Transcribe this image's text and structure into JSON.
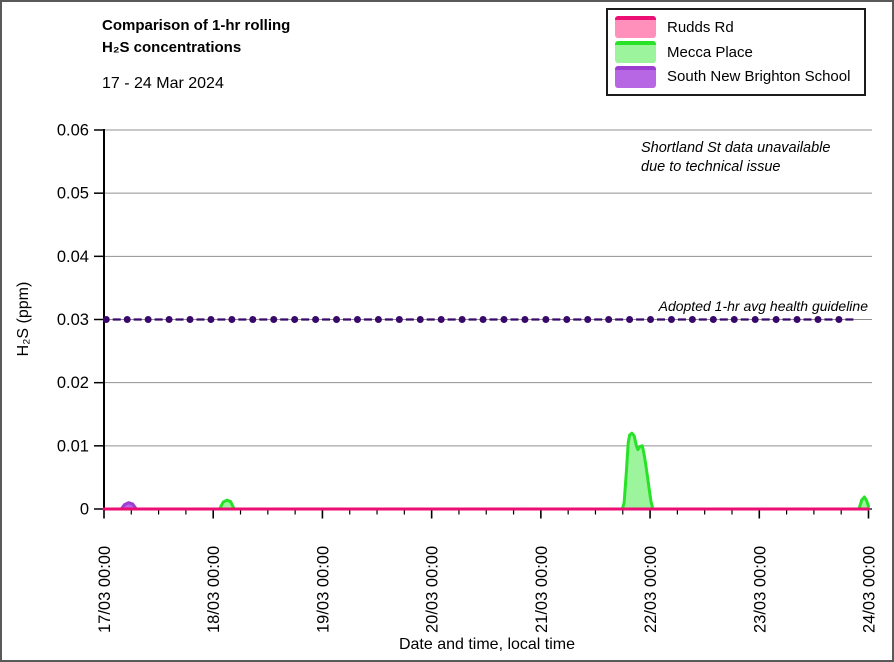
{
  "window": {
    "background": "#ffffff",
    "border_color": "#595959"
  },
  "header": {
    "title_line1": "Comparison of 1-hr rolling",
    "title_line2": "H₂S concentrations",
    "subtitle": "17  - 24 Mar 2024"
  },
  "legend": {
    "items": [
      {
        "label": "Rudds Rd",
        "line": "#ec0e72",
        "fill": "#ff8fbb"
      },
      {
        "label": "Mecca Place",
        "line": "#28e228",
        "fill": "#9cf49c"
      },
      {
        "label": "South New Brighton School",
        "line": "#9c3fd1",
        "fill": "#b767e4"
      }
    ]
  },
  "annotations": {
    "unavailable_note_line1": "Shortland St data unavailable",
    "unavailable_note_line2": "due to technical issue",
    "guideline_label": "Adopted 1-hr avg health guideline"
  },
  "chart_data": {
    "type": "area",
    "title": "Comparison of 1-hr rolling H₂S concentrations",
    "subtitle": "17 - 24 Mar 2024",
    "xlabel": "Date and time, local time",
    "ylabel": "H₂S (ppm)",
    "x_axis_start": "17/03 00:00",
    "x_axis_end": "24/03 00:00",
    "xlim_hours": [
      0,
      168
    ],
    "ylim": [
      0,
      0.06
    ],
    "yticks": [
      0,
      0.01,
      0.02,
      0.03,
      0.04,
      0.05,
      0.06
    ],
    "ytick_labels": [
      "0",
      "0.01",
      "0.02",
      "0.03",
      "0.04",
      "0.05",
      "0.06"
    ],
    "xtick_labels": [
      "17/03 00:00",
      "18/03 00:00",
      "19/03 00:00",
      "20/03 00:00",
      "21/03 00:00",
      "22/03 00:00",
      "23/03 00:00",
      "24/03 00:00"
    ],
    "x_major_interval_hours": 24,
    "x_minor_interval_hours": 6,
    "grid": true,
    "grid_color": "#909090",
    "axis_color": "#000000",
    "legend_position": "top-right",
    "guideline": {
      "value": 0.03,
      "label": "Adopted 1-hr avg health guideline",
      "color": "#38096b",
      "style": "dashed-with-dot-markers",
      "start_hours": 0.5,
      "end_hours": 166,
      "marker_interval_hours": 4.6
    },
    "series": [
      {
        "name": "Rudds Rd",
        "line_color": "#ec0e72",
        "fill_color": "#ff8fbb",
        "points": [
          [
            0,
            0
          ],
          [
            168,
            0
          ]
        ]
      },
      {
        "name": "Mecca Place",
        "line_color": "#28e228",
        "fill_color": "#9cf49c",
        "points": [
          [
            0,
            0
          ],
          [
            25.4,
            0
          ],
          [
            26.2,
            0.0011
          ],
          [
            27.0,
            0.0014
          ],
          [
            27.8,
            0.0012
          ],
          [
            28.6,
            0
          ],
          [
            113.9,
            0
          ],
          [
            114.3,
            0.001
          ],
          [
            114.8,
            0.006
          ],
          [
            115.2,
            0.0105
          ],
          [
            115.5,
            0.0117
          ],
          [
            116.0,
            0.012
          ],
          [
            116.5,
            0.0116
          ],
          [
            117.0,
            0.01
          ],
          [
            117.3,
            0.0094
          ],
          [
            117.8,
            0.0099
          ],
          [
            118.3,
            0.01
          ],
          [
            118.8,
            0.0082
          ],
          [
            119.3,
            0.0058
          ],
          [
            119.8,
            0.0032
          ],
          [
            120.2,
            0.0012
          ],
          [
            120.6,
            0
          ],
          [
            165.9,
            0
          ],
          [
            166.5,
            0.0014
          ],
          [
            167.1,
            0.0019
          ],
          [
            167.6,
            0.0013
          ],
          [
            168,
            0.0004
          ]
        ]
      },
      {
        "name": "South New Brighton School",
        "line_color": "#9c3fd1",
        "fill_color": "#b767e4",
        "points": [
          [
            0,
            0
          ],
          [
            3.8,
            0
          ],
          [
            4.5,
            0.0007
          ],
          [
            5.4,
            0.001
          ],
          [
            6.3,
            0.0008
          ],
          [
            7.1,
            0
          ],
          [
            168,
            0
          ]
        ]
      }
    ],
    "draw_order": [
      "Mecca Place",
      "South New Brighton School",
      "Rudds Rd"
    ]
  }
}
